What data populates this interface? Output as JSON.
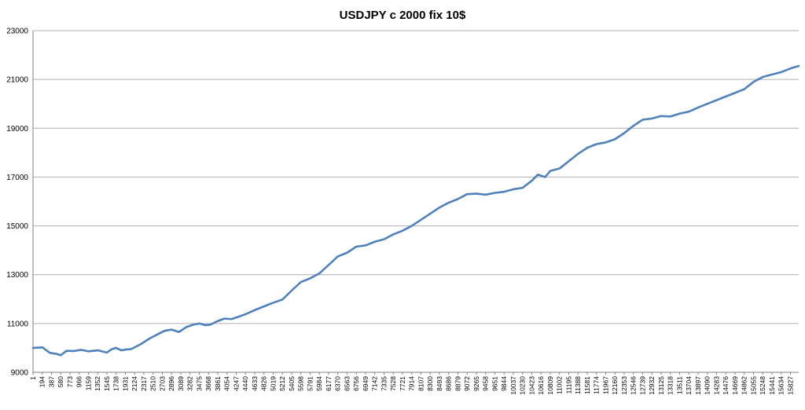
{
  "chart_data": {
    "type": "line",
    "title": "USDJPY c 2000 fix 10$",
    "xlabel": "",
    "ylabel": "",
    "ylim": [
      9000,
      23000
    ],
    "yticks": [
      "9000",
      "11000",
      "13000",
      "15000",
      "17000",
      "19000",
      "21000",
      "23000"
    ],
    "xlim": [
      1,
      16000
    ],
    "xticks": [
      "1",
      "194",
      "387",
      "580",
      "773",
      "966",
      "1159",
      "1352",
      "1545",
      "1738",
      "1931",
      "2124",
      "2317",
      "2510",
      "2703",
      "2896",
      "3089",
      "3282",
      "3475",
      "3668",
      "3861",
      "4054",
      "4247",
      "4440",
      "4633",
      "4826",
      "5019",
      "5212",
      "5405",
      "5598",
      "5791",
      "5984",
      "6177",
      "6370",
      "6563",
      "6756",
      "6949",
      "7142",
      "7335",
      "7528",
      "7721",
      "7914",
      "8107",
      "8300",
      "8493",
      "8686",
      "8879",
      "9072",
      "9265",
      "9458",
      "9651",
      "9844",
      "10037",
      "10230",
      "10423",
      "10616",
      "10809",
      "11002",
      "11195",
      "11388",
      "11581",
      "11774",
      "11967",
      "12160",
      "12353",
      "12546",
      "12739",
      "12932",
      "13125",
      "13318",
      "13511",
      "13704",
      "13897",
      "14090",
      "14283",
      "14476",
      "14669",
      "14862",
      "15055",
      "15248",
      "15441",
      "15634",
      "15827"
    ],
    "grid": true,
    "legend": "none",
    "series": [
      {
        "color": "#4f81bd",
        "x": [
          1,
          200,
          350,
          500,
          580,
          700,
          850,
          1000,
          1159,
          1352,
          1545,
          1650,
          1738,
          1850,
          1931,
          2050,
          2250,
          2450,
          2600,
          2750,
          2896,
          3050,
          3200,
          3350,
          3475,
          3600,
          3700,
          3861,
          4000,
          4150,
          4300,
          4440,
          4633,
          4826,
          5019,
          5212,
          5405,
          5598,
          5791,
          5984,
          6177,
          6370,
          6563,
          6756,
          6949,
          7142,
          7335,
          7528,
          7721,
          7914,
          8107,
          8300,
          8493,
          8686,
          8879,
          9072,
          9265,
          9458,
          9651,
          9844,
          10037,
          10230,
          10423,
          10550,
          10700,
          10809,
          11002,
          11195,
          11388,
          11581,
          11774,
          11967,
          12160,
          12353,
          12546,
          12739,
          12932,
          13125,
          13318,
          13511,
          13704,
          13897,
          14090,
          14283,
          14476,
          14669,
          14862,
          15055,
          15248,
          15441,
          15634,
          15827,
          16000
        ],
        "y": [
          10000,
          10020,
          9800,
          9750,
          9700,
          9880,
          9870,
          9920,
          9860,
          9900,
          9810,
          9950,
          10000,
          9900,
          9930,
          9950,
          10150,
          10400,
          10550,
          10700,
          10750,
          10650,
          10850,
          10950,
          11000,
          10930,
          10950,
          11100,
          11200,
          11180,
          11280,
          11380,
          11550,
          11700,
          11850,
          11980,
          12350,
          12700,
          12850,
          13050,
          13400,
          13750,
          13900,
          14150,
          14200,
          14350,
          14450,
          14650,
          14800,
          15000,
          15250,
          15500,
          15750,
          15950,
          16100,
          16300,
          16320,
          16280,
          16350,
          16400,
          16500,
          16560,
          16850,
          17100,
          17000,
          17250,
          17350,
          17650,
          17950,
          18200,
          18350,
          18420,
          18550,
          18800,
          19100,
          19350,
          19400,
          19500,
          19480,
          19600,
          19680,
          19850,
          20000,
          20150,
          20300,
          20450,
          20600,
          20900,
          21100,
          21200,
          21300,
          21450,
          21550
        ]
      }
    ]
  }
}
